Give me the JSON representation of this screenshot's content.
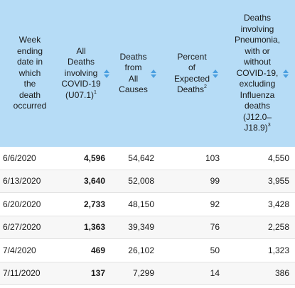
{
  "headers": [
    {
      "lines": [
        "Week",
        "ending",
        "date in",
        "which",
        "the",
        "death",
        "occurred"
      ],
      "sup": ""
    },
    {
      "lines": [
        "All",
        "Deaths",
        "involving",
        "COVID-19",
        "(U07.1)"
      ],
      "sup": "1"
    },
    {
      "lines": [
        "Deaths",
        "from",
        "All",
        "Causes"
      ],
      "sup": ""
    },
    {
      "lines": [
        "Percent",
        "of",
        "Expected",
        "Deaths"
      ],
      "sup": "2"
    },
    {
      "lines": [
        "Deaths",
        "involving",
        "Pneumonia,",
        "with or",
        "without",
        "COVID-19,",
        "excluding",
        "Influenza",
        "deaths",
        "(J12.0–",
        "J18.9)"
      ],
      "sup": "3"
    }
  ],
  "rows": [
    {
      "week": "6/6/2020",
      "covid": "4,596",
      "all": "54,642",
      "pct": "103",
      "pneu": "4,550"
    },
    {
      "week": "6/13/2020",
      "covid": "3,640",
      "all": "52,008",
      "pct": "99",
      "pneu": "3,955"
    },
    {
      "week": "6/20/2020",
      "covid": "2,733",
      "all": "48,150",
      "pct": "92",
      "pneu": "3,428"
    },
    {
      "week": "6/27/2020",
      "covid": "1,363",
      "all": "39,349",
      "pct": "76",
      "pneu": "2,258"
    },
    {
      "week": "7/4/2020",
      "covid": "469",
      "all": "26,102",
      "pct": "50",
      "pneu": "1,323"
    },
    {
      "week": "7/11/2020",
      "covid": "137",
      "all": "7,299",
      "pct": "14",
      "pneu": "386"
    }
  ],
  "colors": {
    "header_bg": "#b6dcf6",
    "sort_icon": "#4a9fe0"
  },
  "icons": {
    "sort": "sort-updown-icon"
  }
}
